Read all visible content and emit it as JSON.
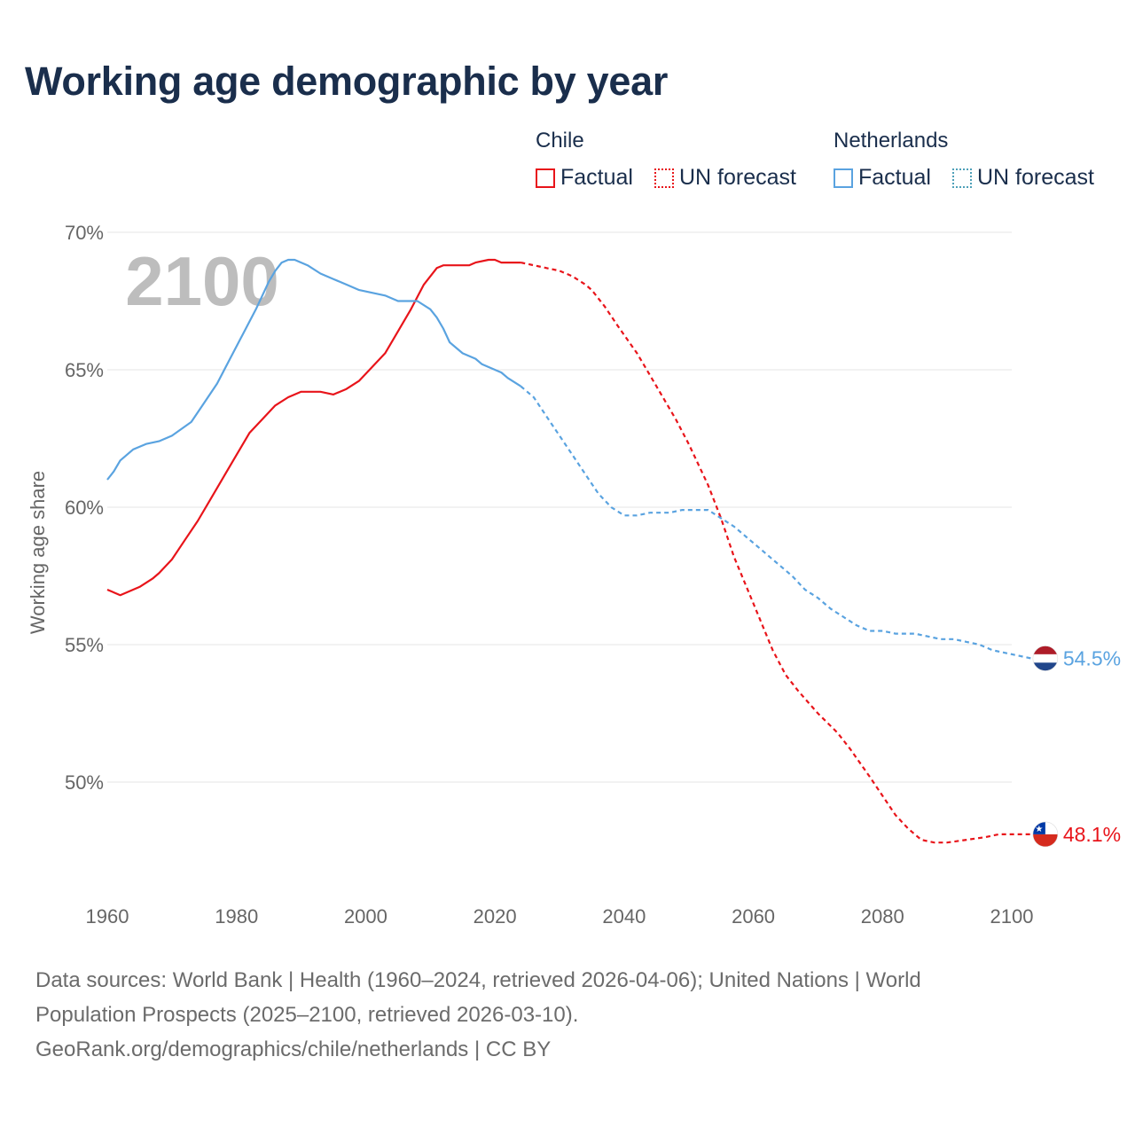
{
  "title": "Working age demographic by year",
  "year_overlay": "2100",
  "legend": {
    "groups": [
      {
        "name": "Chile",
        "factual_label": "Factual",
        "forecast_label": "UN forecast",
        "color": "#e8141a"
      },
      {
        "name": "Netherlands",
        "factual_label": "Factual",
        "forecast_label": "UN forecast",
        "color": "#5aa3e0"
      }
    ]
  },
  "footer": {
    "line1": "Data sources: World Bank | Health (1960–2024, retrieved 2026-04-06); United Nations | World",
    "line2": "Population Prospects (2025–2100, retrieved 2026-03-10).",
    "line3": "GeoRank.org/demographics/chile/netherlands | CC BY"
  },
  "colors": {
    "chile": "#e8141a",
    "netherlands": "#5aa3e0",
    "title": "#1a2e4c",
    "grid": "#e6e6e6"
  },
  "chart_data": {
    "type": "line",
    "title": "Working age demographic by year",
    "xlabel": "",
    "ylabel": "Working age share",
    "xlim": [
      1960,
      2100
    ],
    "ylim": [
      46.5,
      70
    ],
    "xticks": [
      1960,
      1980,
      2000,
      2020,
      2040,
      2060,
      2080,
      2100
    ],
    "yticks": [
      50,
      55,
      60,
      65,
      70
    ],
    "ytick_labels": [
      "50%",
      "55%",
      "60%",
      "65%",
      "70%"
    ],
    "factual_end_year": 2024,
    "series": [
      {
        "name": "Chile",
        "end_label": "48.1%",
        "flag": "chile",
        "points": [
          [
            1960,
            57.0
          ],
          [
            1962,
            56.8
          ],
          [
            1965,
            57.1
          ],
          [
            1967,
            57.4
          ],
          [
            1968,
            57.6
          ],
          [
            1970,
            58.1
          ],
          [
            1972,
            58.8
          ],
          [
            1974,
            59.5
          ],
          [
            1976,
            60.3
          ],
          [
            1978,
            61.1
          ],
          [
            1980,
            61.9
          ],
          [
            1982,
            62.7
          ],
          [
            1984,
            63.2
          ],
          [
            1986,
            63.7
          ],
          [
            1988,
            64.0
          ],
          [
            1990,
            64.2
          ],
          [
            1993,
            64.2
          ],
          [
            1995,
            64.1
          ],
          [
            1997,
            64.3
          ],
          [
            1999,
            64.6
          ],
          [
            2001,
            65.1
          ],
          [
            2003,
            65.6
          ],
          [
            2005,
            66.4
          ],
          [
            2007,
            67.2
          ],
          [
            2009,
            68.1
          ],
          [
            2011,
            68.7
          ],
          [
            2012,
            68.8
          ],
          [
            2016,
            68.8
          ],
          [
            2017,
            68.9
          ],
          [
            2019,
            69.0
          ],
          [
            2020,
            69.0
          ],
          [
            2021,
            68.9
          ],
          [
            2024,
            68.9
          ],
          [
            2026,
            68.8
          ],
          [
            2028,
            68.7
          ],
          [
            2030,
            68.6
          ],
          [
            2032,
            68.4
          ],
          [
            2034,
            68.1
          ],
          [
            2035,
            67.9
          ],
          [
            2037,
            67.3
          ],
          [
            2039,
            66.6
          ],
          [
            2042,
            65.6
          ],
          [
            2045,
            64.4
          ],
          [
            2048,
            63.2
          ],
          [
            2050,
            62.3
          ],
          [
            2053,
            60.8
          ],
          [
            2055,
            59.6
          ],
          [
            2057,
            58.2
          ],
          [
            2060,
            56.5
          ],
          [
            2063,
            54.8
          ],
          [
            2065,
            53.9
          ],
          [
            2067,
            53.3
          ],
          [
            2070,
            52.5
          ],
          [
            2073,
            51.8
          ],
          [
            2075,
            51.2
          ],
          [
            2078,
            50.2
          ],
          [
            2080,
            49.5
          ],
          [
            2082,
            48.8
          ],
          [
            2084,
            48.3
          ],
          [
            2086,
            47.9
          ],
          [
            2088,
            47.8
          ],
          [
            2090,
            47.8
          ],
          [
            2093,
            47.9
          ],
          [
            2096,
            48.0
          ],
          [
            2098,
            48.1
          ],
          [
            2100,
            48.1
          ],
          [
            2103,
            48.1
          ]
        ]
      },
      {
        "name": "Netherlands",
        "end_label": "54.5%",
        "flag": "netherlands",
        "points": [
          [
            1960,
            61.0
          ],
          [
            1961,
            61.3
          ],
          [
            1962,
            61.7
          ],
          [
            1964,
            62.1
          ],
          [
            1966,
            62.3
          ],
          [
            1968,
            62.4
          ],
          [
            1970,
            62.6
          ],
          [
            1973,
            63.1
          ],
          [
            1975,
            63.8
          ],
          [
            1977,
            64.5
          ],
          [
            1979,
            65.4
          ],
          [
            1981,
            66.3
          ],
          [
            1983,
            67.2
          ],
          [
            1985,
            68.2
          ],
          [
            1986,
            68.6
          ],
          [
            1987,
            68.9
          ],
          [
            1988,
            69.0
          ],
          [
            1989,
            69.0
          ],
          [
            1991,
            68.8
          ],
          [
            1993,
            68.5
          ],
          [
            1995,
            68.3
          ],
          [
            1997,
            68.1
          ],
          [
            1999,
            67.9
          ],
          [
            2001,
            67.8
          ],
          [
            2003,
            67.7
          ],
          [
            2005,
            67.5
          ],
          [
            2008,
            67.5
          ],
          [
            2010,
            67.2
          ],
          [
            2011,
            66.9
          ],
          [
            2012,
            66.5
          ],
          [
            2013,
            66.0
          ],
          [
            2015,
            65.6
          ],
          [
            2017,
            65.4
          ],
          [
            2018,
            65.2
          ],
          [
            2020,
            65.0
          ],
          [
            2021,
            64.9
          ],
          [
            2022,
            64.7
          ],
          [
            2024,
            64.4
          ],
          [
            2026,
            64.0
          ],
          [
            2028,
            63.3
          ],
          [
            2030,
            62.6
          ],
          [
            2032,
            61.9
          ],
          [
            2034,
            61.2
          ],
          [
            2036,
            60.5
          ],
          [
            2038,
            60.0
          ],
          [
            2040,
            59.7
          ],
          [
            2042,
            59.7
          ],
          [
            2044,
            59.8
          ],
          [
            2047,
            59.8
          ],
          [
            2049,
            59.9
          ],
          [
            2053,
            59.9
          ],
          [
            2055,
            59.6
          ],
          [
            2057,
            59.3
          ],
          [
            2059,
            58.9
          ],
          [
            2061,
            58.5
          ],
          [
            2063,
            58.1
          ],
          [
            2066,
            57.5
          ],
          [
            2068,
            57.0
          ],
          [
            2070,
            56.7
          ],
          [
            2072,
            56.3
          ],
          [
            2074,
            56.0
          ],
          [
            2076,
            55.7
          ],
          [
            2078,
            55.5
          ],
          [
            2080,
            55.5
          ],
          [
            2082,
            55.4
          ],
          [
            2085,
            55.4
          ],
          [
            2087,
            55.3
          ],
          [
            2089,
            55.2
          ],
          [
            2091,
            55.2
          ],
          [
            2093,
            55.1
          ],
          [
            2095,
            55.0
          ],
          [
            2097,
            54.8
          ],
          [
            2099,
            54.7
          ],
          [
            2101,
            54.6
          ],
          [
            2103,
            54.5
          ]
        ]
      }
    ]
  }
}
